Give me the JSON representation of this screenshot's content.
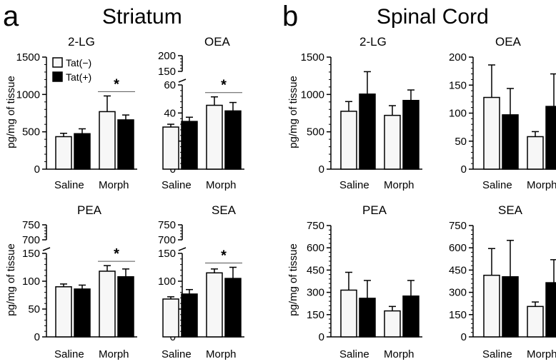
{
  "figure": {
    "panels": [
      {
        "letter": "a",
        "title": "Striatum"
      },
      {
        "letter": "b",
        "title": "Spinal Cord"
      }
    ],
    "ylabel": "pg/mg of tissue",
    "legend": [
      {
        "label": "Tat(−)",
        "color": "#f7f7f7"
      },
      {
        "label": "Tat(+)",
        "color": "#000000"
      }
    ],
    "colors": {
      "tat_neg": "#f7f7f7",
      "tat_pos": "#000000",
      "axis": "#000000"
    }
  },
  "chart_data": [
    {
      "type": "bar",
      "region": "Striatum",
      "title": "2-LG",
      "categories": [
        "Saline",
        "Morph"
      ],
      "series": [
        {
          "name": "Tat(−)",
          "values": [
            435,
            770
          ],
          "errors": [
            45,
            210
          ]
        },
        {
          "name": "Tat(+)",
          "values": [
            475,
            660
          ],
          "errors": [
            65,
            65
          ]
        }
      ],
      "yticks": [
        0,
        500,
        1000,
        1500
      ],
      "ylim": [
        0,
        1500
      ],
      "significance": {
        "label": "*",
        "group": "Morph"
      }
    },
    {
      "type": "bar",
      "region": "Striatum",
      "title": "OEA",
      "categories": [
        "Saline",
        "Morph"
      ],
      "series": [
        {
          "name": "Tat(−)",
          "values": [
            30,
            45.5
          ],
          "errors": [
            2,
            6
          ]
        },
        {
          "name": "Tat(+)",
          "values": [
            34,
            41.5
          ],
          "errors": [
            3,
            6
          ]
        }
      ],
      "yticks": [
        0,
        20,
        40,
        60,
        150,
        200
      ],
      "axis_break": [
        60,
        150
      ],
      "significance": {
        "label": "*",
        "group": "Morph"
      }
    },
    {
      "type": "bar",
      "region": "Striatum",
      "title": "PEA",
      "categories": [
        "Saline",
        "Morph"
      ],
      "series": [
        {
          "name": "Tat(−)",
          "values": [
            90,
            118
          ],
          "errors": [
            5,
            10
          ]
        },
        {
          "name": "Tat(+)",
          "values": [
            86,
            108
          ],
          "errors": [
            7,
            14
          ]
        }
      ],
      "yticks": [
        0,
        50,
        100,
        150,
        700,
        750
      ],
      "axis_break": [
        150,
        700
      ],
      "significance": {
        "label": "*",
        "group": "Morph"
      }
    },
    {
      "type": "bar",
      "region": "Striatum",
      "title": "SEA",
      "categories": [
        "Saline",
        "Morph"
      ],
      "series": [
        {
          "name": "Tat(−)",
          "values": [
            68,
            115
          ],
          "errors": [
            4,
            7
          ]
        },
        {
          "name": "Tat(+)",
          "values": [
            77,
            105
          ],
          "errors": [
            8,
            20
          ]
        }
      ],
      "yticks": [
        0,
        50,
        100,
        150,
        700,
        750
      ],
      "axis_break": [
        150,
        700
      ],
      "significance": {
        "label": "*",
        "group": "Morph"
      }
    },
    {
      "type": "bar",
      "region": "Spinal Cord",
      "title": "2-LG",
      "categories": [
        "Saline",
        "Morph"
      ],
      "series": [
        {
          "name": "Tat(−)",
          "values": [
            775,
            720
          ],
          "errors": [
            130,
            130
          ]
        },
        {
          "name": "Tat(+)",
          "values": [
            1005,
            920
          ],
          "errors": [
            300,
            140
          ]
        }
      ],
      "yticks": [
        0,
        500,
        1000,
        1500
      ],
      "ylim": [
        0,
        1500
      ]
    },
    {
      "type": "bar",
      "region": "Spinal Cord",
      "title": "OEA",
      "categories": [
        "Saline",
        "Morph"
      ],
      "series": [
        {
          "name": "Tat(−)",
          "values": [
            128,
            58
          ],
          "errors": [
            58,
            9
          ]
        },
        {
          "name": "Tat(+)",
          "values": [
            97,
            112
          ],
          "errors": [
            47,
            58
          ]
        }
      ],
      "yticks": [
        0,
        50,
        100,
        150,
        200
      ],
      "ylim": [
        0,
        200
      ]
    },
    {
      "type": "bar",
      "region": "Spinal Cord",
      "title": "PEA",
      "categories": [
        "Saline",
        "Morph"
      ],
      "series": [
        {
          "name": "Tat(−)",
          "values": [
            315,
            175
          ],
          "errors": [
            120,
            30
          ]
        },
        {
          "name": "Tat(+)",
          "values": [
            260,
            275
          ],
          "errors": [
            120,
            105
          ]
        }
      ],
      "yticks": [
        0,
        150,
        300,
        450,
        600,
        750
      ],
      "ylim": [
        0,
        750
      ]
    },
    {
      "type": "bar",
      "region": "Spinal Cord",
      "title": "SEA",
      "categories": [
        "Saline",
        "Morph"
      ],
      "series": [
        {
          "name": "Tat(−)",
          "values": [
            415,
            205
          ],
          "errors": [
            180,
            30
          ]
        },
        {
          "name": "Tat(+)",
          "values": [
            405,
            365
          ],
          "errors": [
            245,
            155
          ]
        }
      ],
      "yticks": [
        0,
        150,
        300,
        450,
        600,
        750
      ],
      "ylim": [
        0,
        750
      ]
    }
  ]
}
